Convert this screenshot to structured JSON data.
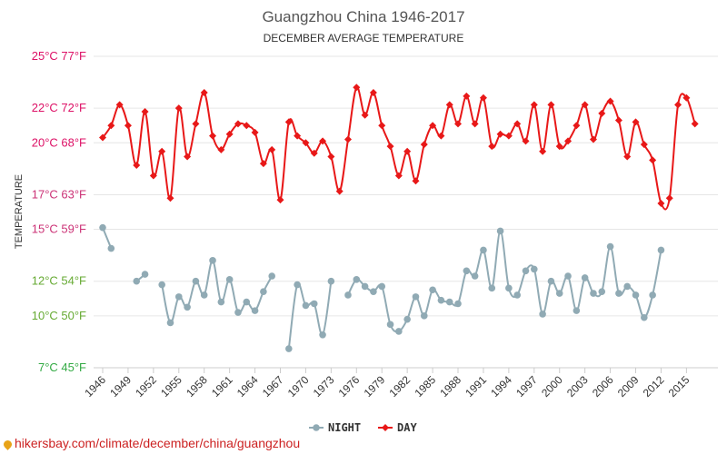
{
  "chart_data": {
    "type": "line",
    "title": "Guangzhou China 1946-2017",
    "subtitle": "DECEMBER AVERAGE TEMPERATURE",
    "ylabel": "TEMPERATURE",
    "ylim": [
      7,
      25
    ],
    "yticks": [
      {
        "value": 25,
        "label": "25°C 77°F"
      },
      {
        "value": 22,
        "label": "22°C 72°F"
      },
      {
        "value": 20,
        "label": "20°C 68°F"
      },
      {
        "value": 17,
        "label": "17°C 63°F"
      },
      {
        "value": 15,
        "label": "15°C 59°F"
      },
      {
        "value": 12,
        "label": "12°C 54°F"
      },
      {
        "value": 10,
        "label": "10°C 50°F"
      },
      {
        "value": 7,
        "label": "7°C 45°F"
      }
    ],
    "xticks": [
      "1946",
      "1949",
      "1952",
      "1955",
      "1958",
      "1961",
      "1964",
      "1967",
      "1970",
      "1973",
      "1976",
      "1979",
      "1982",
      "1985",
      "1988",
      "1991",
      "1994",
      "1997",
      "2000",
      "2003",
      "2006",
      "2009",
      "2012",
      "2015"
    ],
    "x": [
      1946,
      1947,
      1948,
      1949,
      1950,
      1951,
      1952,
      1953,
      1954,
      1955,
      1956,
      1957,
      1958,
      1959,
      1960,
      1961,
      1962,
      1963,
      1964,
      1965,
      1966,
      1967,
      1968,
      1969,
      1970,
      1971,
      1972,
      1973,
      1974,
      1975,
      1976,
      1977,
      1978,
      1979,
      1980,
      1981,
      1982,
      1983,
      1984,
      1985,
      1986,
      1987,
      1988,
      1989,
      1990,
      1991,
      1992,
      1993,
      1994,
      1995,
      1996,
      1997,
      1998,
      1999,
      2000,
      2001,
      2002,
      2003,
      2004,
      2005,
      2006,
      2007,
      2008,
      2009,
      2010,
      2011,
      2012,
      2013,
      2014,
      2015,
      2016,
      2017
    ],
    "series": [
      {
        "name": "NIGHT",
        "color": "#90aab4",
        "values": [
          15.1,
          13.9,
          null,
          null,
          12.0,
          12.4,
          null,
          11.8,
          9.6,
          11.1,
          10.5,
          12.0,
          11.2,
          13.2,
          10.8,
          12.1,
          10.2,
          10.8,
          10.3,
          11.4,
          12.3,
          null,
          8.1,
          11.8,
          10.6,
          10.7,
          8.9,
          12.0,
          null,
          11.2,
          12.1,
          11.7,
          11.4,
          11.7,
          9.5,
          9.1,
          9.8,
          11.1,
          10.0,
          11.5,
          10.9,
          10.8,
          10.7,
          12.6,
          12.3,
          13.8,
          11.6,
          14.9,
          11.6,
          11.2,
          12.6,
          12.7,
          10.1,
          12.0,
          11.3,
          12.3,
          10.3,
          12.2,
          11.3,
          11.4,
          14.0,
          11.3,
          11.7,
          11.2,
          9.9,
          11.2,
          13.8,
          null,
          null,
          null,
          null,
          null
        ]
      },
      {
        "name": "DAY",
        "color": "#e81818",
        "values": [
          20.3,
          21.0,
          22.2,
          21.0,
          18.7,
          21.8,
          18.1,
          19.5,
          16.8,
          22.0,
          19.2,
          21.1,
          22.9,
          20.4,
          19.6,
          20.5,
          21.1,
          21.0,
          20.6,
          18.8,
          19.6,
          16.7,
          21.2,
          20.4,
          20.0,
          19.4,
          20.1,
          19.2,
          17.2,
          20.2,
          23.2,
          21.6,
          22.9,
          21.0,
          19.8,
          18.1,
          19.5,
          17.8,
          19.9,
          21.0,
          20.4,
          22.2,
          21.1,
          22.7,
          21.1,
          22.6,
          19.8,
          20.5,
          20.4,
          21.1,
          20.1,
          22.2,
          19.5,
          22.2,
          19.8,
          20.1,
          21.0,
          22.2,
          20.2,
          21.7,
          22.4,
          21.3,
          19.2,
          21.2,
          19.9,
          19.0,
          16.5,
          16.8,
          22.2,
          22.6,
          21.1,
          null
        ]
      }
    ],
    "legend": {
      "position": "bottom-center",
      "items": [
        "NIGHT",
        "DAY"
      ]
    },
    "grid": true
  },
  "footer": {
    "text": "hikersbay.com/climate/december/china/guangzhou",
    "pin_icon": "location-pin-icon"
  }
}
